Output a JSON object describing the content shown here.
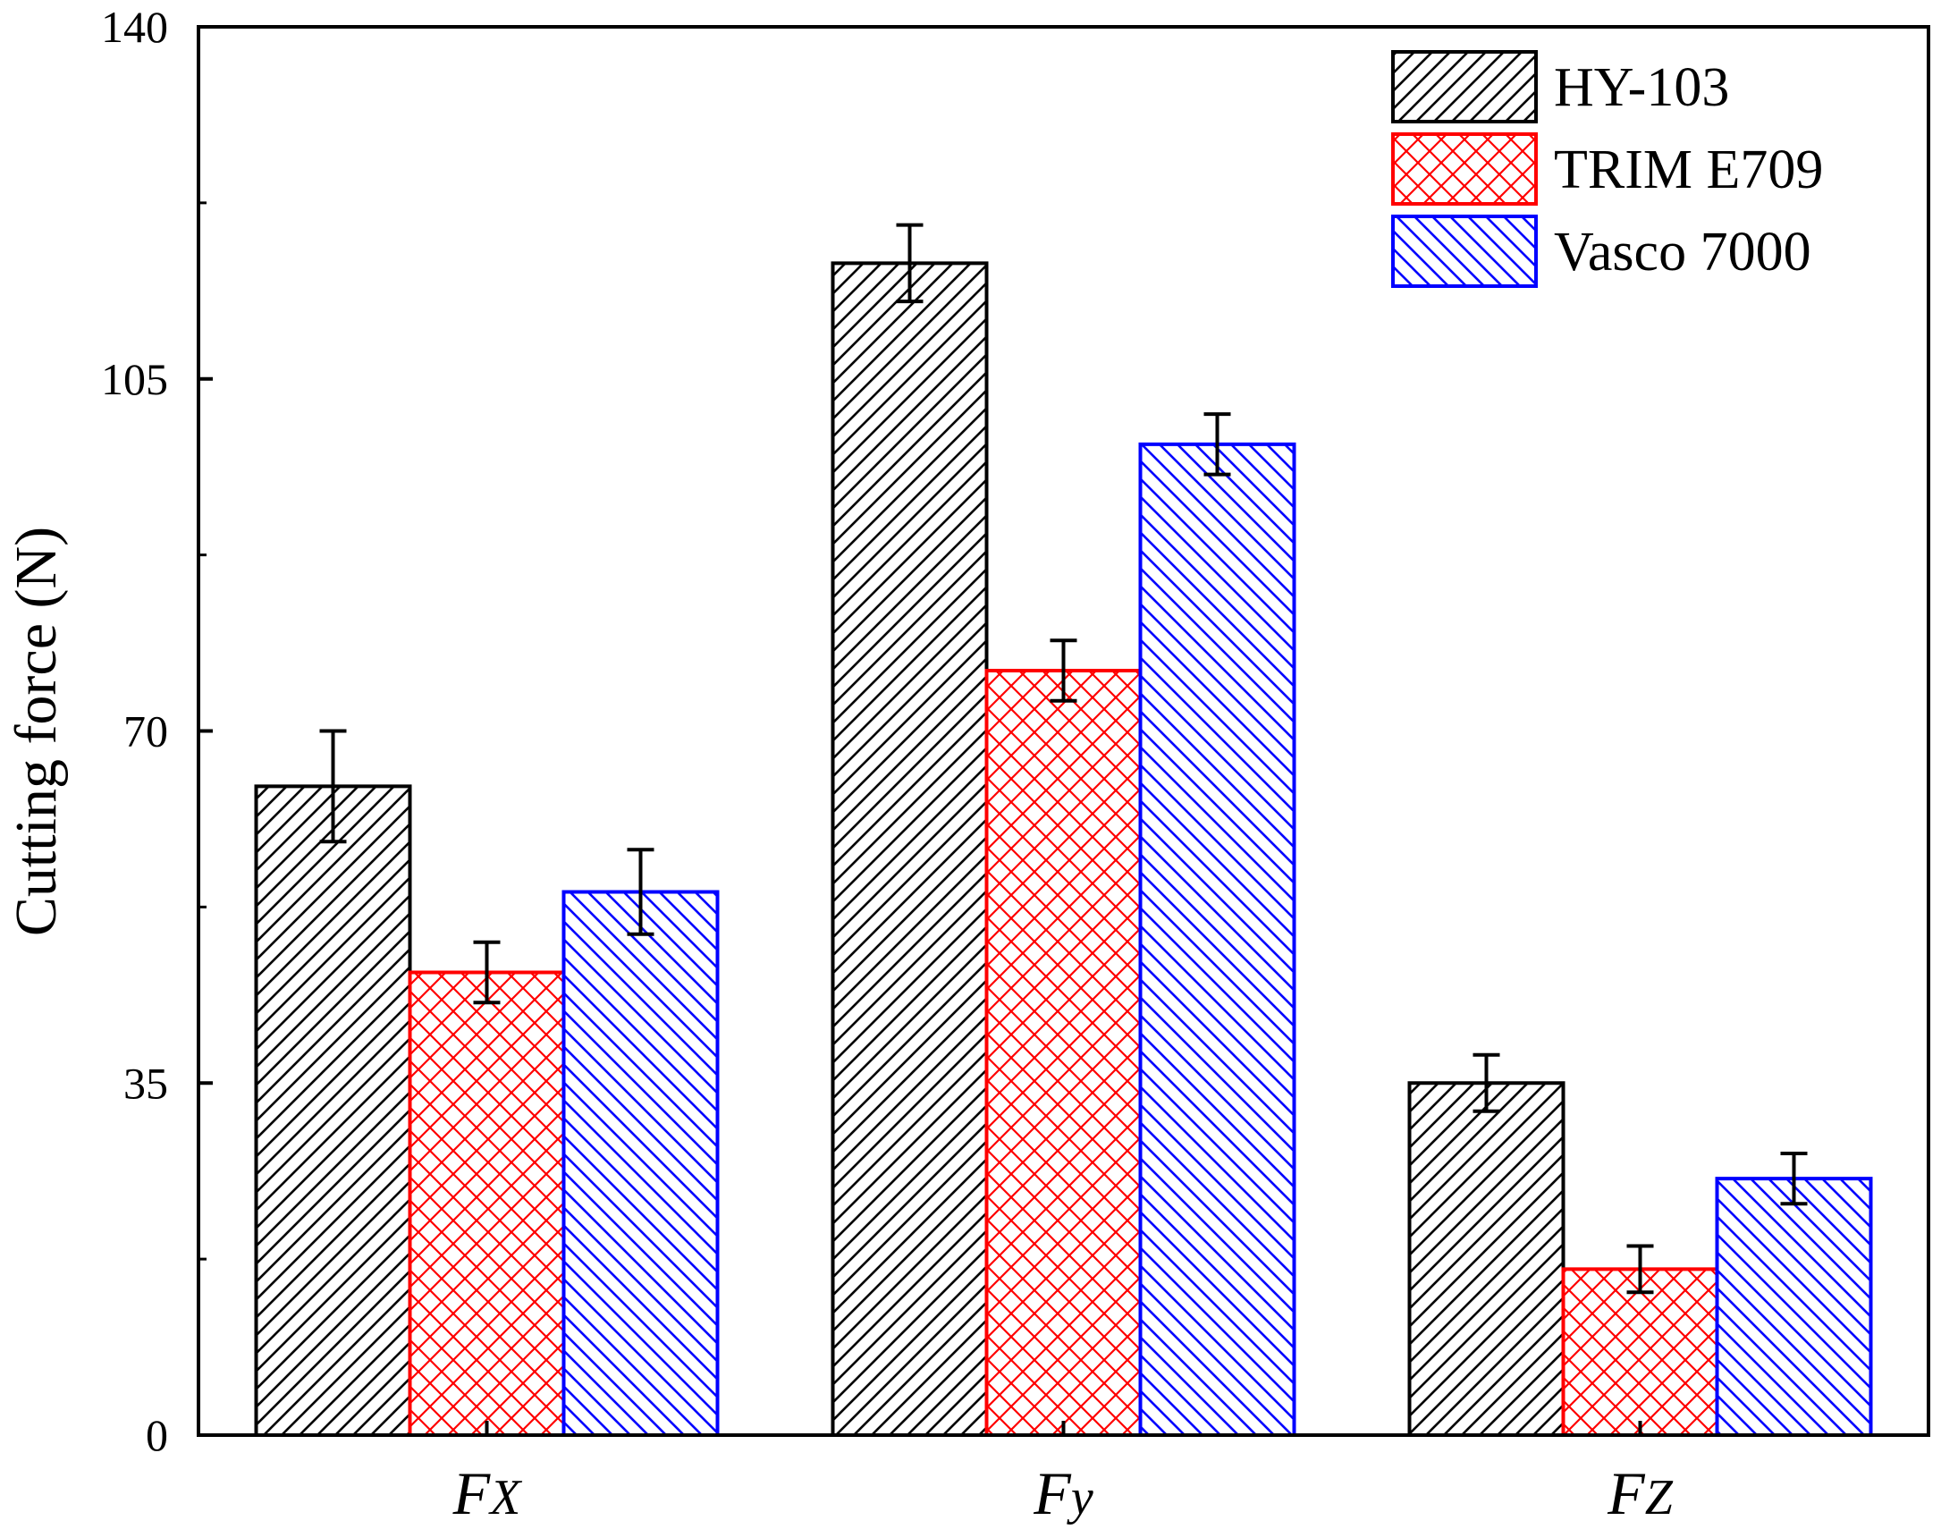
{
  "chart_data": {
    "type": "bar",
    "ylabel": "Cutting force  (N)",
    "ylim": [
      0,
      140
    ],
    "yticks": [
      0,
      35,
      70,
      105,
      140
    ],
    "categories": [
      {
        "main": "F",
        "sub": "X"
      },
      {
        "main": "F",
        "sub": "y"
      },
      {
        "main": "F",
        "sub": "Z"
      }
    ],
    "series": [
      {
        "name": "HY-103",
        "values": [
          64.5,
          116.5,
          35
        ],
        "errors": [
          5.5,
          3.8,
          2.8
        ],
        "color": "#000000",
        "pattern": "diag-up"
      },
      {
        "name": "TRIM E709",
        "values": [
          46,
          76,
          16.5
        ],
        "errors": [
          3,
          3,
          2.3
        ],
        "color": "#ff0000",
        "pattern": "crosshatch"
      },
      {
        "name": "Vasco 7000",
        "values": [
          54,
          98.5,
          25.5
        ],
        "errors": [
          4.2,
          3,
          2.5
        ],
        "color": "#0000ff",
        "pattern": "diag-down"
      }
    ],
    "legend_position": "top-right",
    "grid": false
  }
}
